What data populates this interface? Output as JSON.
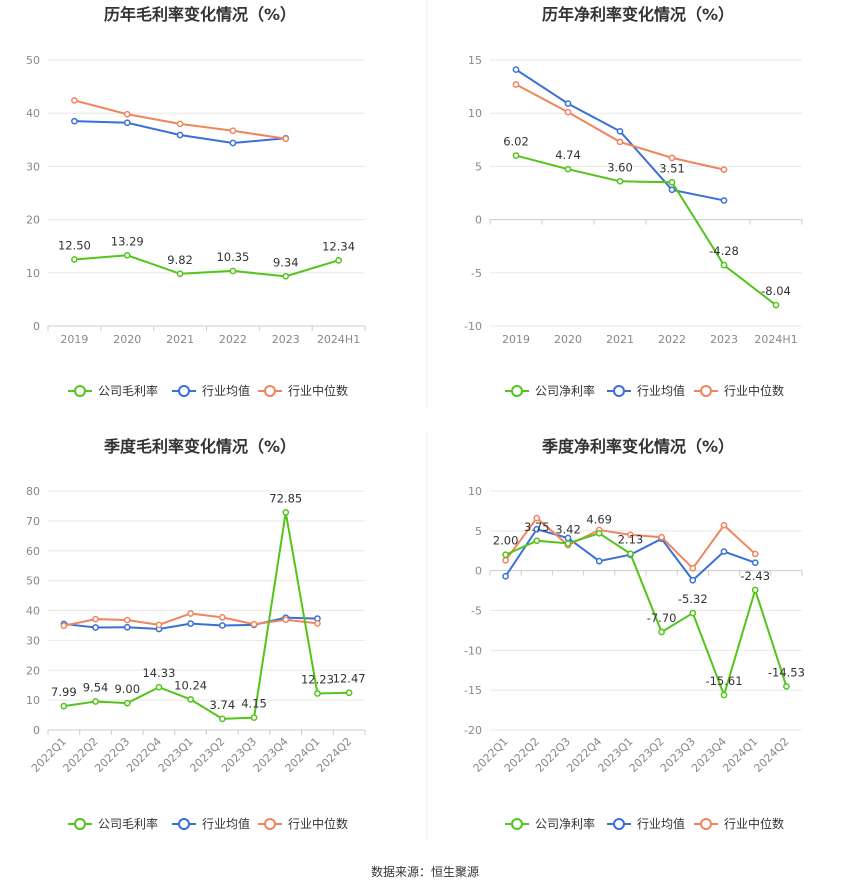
{
  "source_label": "数据来源：恒生聚源",
  "colors": {
    "company": "#52c41a",
    "industry_avg": "#3a6fd8",
    "industry_median": "#f0845c",
    "grid": "#e8e8e8",
    "axis": "#cccccc",
    "divider": "#eeeeee"
  },
  "chart_data": [
    {
      "type": "line",
      "title": "历年毛利率变化情况（%）",
      "categories": [
        "2019",
        "2020",
        "2021",
        "2022",
        "2023",
        "2024H1"
      ],
      "ylim": [
        0,
        50
      ],
      "yticks": [
        0,
        10,
        20,
        30,
        40,
        50
      ],
      "grid": true,
      "legend_position": "bottom",
      "series": [
        {
          "name": "公司毛利率",
          "color_key": "company",
          "show_labels": true,
          "values": [
            12.5,
            13.29,
            9.82,
            10.35,
            9.34,
            12.34
          ],
          "labels": [
            "12.50",
            "13.29",
            "9.82",
            "10.35",
            "9.34",
            "12.34"
          ]
        },
        {
          "name": "行业均值",
          "color_key": "industry_avg",
          "show_labels": false,
          "values": [
            38.5,
            38.2,
            35.9,
            34.4,
            35.3,
            null
          ]
        },
        {
          "name": "行业中位数",
          "color_key": "industry_median",
          "show_labels": false,
          "values": [
            42.4,
            39.8,
            38.0,
            36.7,
            35.2,
            null
          ]
        }
      ]
    },
    {
      "type": "line",
      "title": "历年净利率变化情况（%）",
      "categories": [
        "2019",
        "2020",
        "2021",
        "2022",
        "2023",
        "2024H1"
      ],
      "ylim": [
        -10,
        15
      ],
      "yticks": [
        -10,
        -5,
        0,
        5,
        10,
        15
      ],
      "grid": true,
      "legend_position": "bottom",
      "series": [
        {
          "name": "公司净利率",
          "color_key": "company",
          "show_labels": true,
          "values": [
            6.02,
            4.74,
            3.6,
            3.51,
            -4.28,
            -8.04
          ],
          "labels": [
            "6.02",
            "4.74",
            "3.60",
            "3.51",
            "-4.28",
            "-8.04"
          ]
        },
        {
          "name": "行业均值",
          "color_key": "industry_avg",
          "show_labels": false,
          "values": [
            14.1,
            10.9,
            8.3,
            2.8,
            1.8,
            null
          ]
        },
        {
          "name": "行业中位数",
          "color_key": "industry_median",
          "show_labels": false,
          "values": [
            12.7,
            10.1,
            7.3,
            5.8,
            4.7,
            null
          ]
        }
      ]
    },
    {
      "type": "line",
      "title": "季度毛利率变化情况（%）",
      "categories": [
        "2022Q1",
        "2022Q2",
        "2022Q3",
        "2022Q4",
        "2023Q1",
        "2023Q2",
        "2023Q3",
        "2023Q4",
        "2024Q1",
        "2024Q2"
      ],
      "ylim": [
        0,
        80
      ],
      "yticks": [
        0,
        10,
        20,
        30,
        40,
        50,
        60,
        70,
        80
      ],
      "grid": true,
      "legend_position": "bottom",
      "series": [
        {
          "name": "公司毛利率",
          "color_key": "company",
          "show_labels": true,
          "values": [
            7.99,
            9.54,
            9.0,
            14.33,
            10.24,
            3.74,
            4.15,
            72.85,
            12.23,
            12.47
          ],
          "labels": [
            "7.99",
            "9.54",
            "9.00",
            "14.33",
            "10.24",
            "3.74",
            "4.15",
            "72.85",
            "12.23",
            "12.47"
          ]
        },
        {
          "name": "行业均值",
          "color_key": "industry_avg",
          "show_labels": false,
          "values": [
            35.5,
            34.3,
            34.4,
            33.8,
            35.6,
            35.0,
            35.2,
            37.6,
            37.3,
            null
          ]
        },
        {
          "name": "行业中位数",
          "color_key": "industry_median",
          "show_labels": false,
          "values": [
            34.9,
            37.1,
            36.8,
            35.2,
            39.0,
            37.7,
            35.4,
            36.9,
            35.7,
            null
          ]
        }
      ]
    },
    {
      "type": "line",
      "title": "季度净利率变化情况（%）",
      "categories": [
        "2022Q1",
        "2022Q2",
        "2022Q3",
        "2022Q4",
        "2023Q1",
        "2023Q2",
        "2023Q3",
        "2023Q4",
        "2024Q1",
        "2024Q2"
      ],
      "ylim": [
        -20,
        10
      ],
      "yticks": [
        -20,
        -15,
        -10,
        -5,
        0,
        5,
        10
      ],
      "grid": true,
      "legend_position": "bottom",
      "series": [
        {
          "name": "公司净利率",
          "color_key": "company",
          "show_labels": true,
          "values": [
            2.0,
            3.75,
            3.42,
            4.69,
            2.13,
            -7.7,
            -5.32,
            -15.61,
            -2.43,
            -14.53
          ],
          "labels": [
            "2.00",
            "3.75",
            "3.42",
            "4.69",
            "2.13",
            "-7.70",
            "-5.32",
            "-15.61",
            "-2.43",
            "-14.53"
          ]
        },
        {
          "name": "行业均值",
          "color_key": "industry_avg",
          "show_labels": false,
          "values": [
            -0.7,
            5.2,
            4.1,
            1.2,
            2.0,
            4.0,
            -1.2,
            2.4,
            1.0,
            null
          ]
        },
        {
          "name": "行业中位数",
          "color_key": "industry_median",
          "show_labels": false,
          "values": [
            1.3,
            6.6,
            3.2,
            5.1,
            4.5,
            4.2,
            0.3,
            5.7,
            2.1,
            null
          ]
        }
      ]
    }
  ]
}
